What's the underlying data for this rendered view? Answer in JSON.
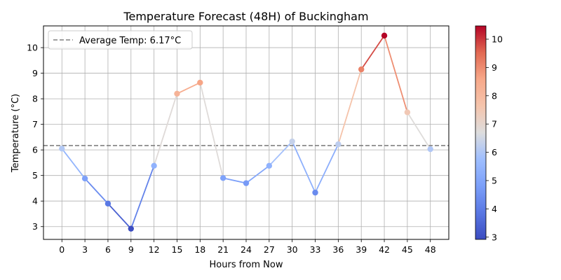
{
  "chart_data": {
    "type": "line",
    "title": "Temperature Forecast (48H) of Buckingham",
    "xlabel": "Hours from Now",
    "ylabel": "Temperature (°C)",
    "x": [
      0,
      3,
      6,
      9,
      12,
      15,
      18,
      21,
      24,
      27,
      30,
      33,
      36,
      39,
      42,
      45,
      48
    ],
    "y": [
      6.05,
      4.88,
      3.9,
      2.92,
      5.38,
      8.2,
      8.63,
      4.9,
      4.7,
      5.38,
      6.33,
      4.33,
      6.22,
      9.15,
      10.47,
      7.47,
      6.03
    ],
    "xlim": [
      -2.4,
      50.4
    ],
    "ylim": [
      2.5,
      10.85
    ],
    "xticks": [
      "0",
      "3",
      "6",
      "9",
      "12",
      "15",
      "18",
      "21",
      "24",
      "27",
      "30",
      "33",
      "36",
      "39",
      "42",
      "45",
      "48"
    ],
    "yticks": [
      "3",
      "4",
      "5",
      "6",
      "7",
      "8",
      "9",
      "10"
    ],
    "average": {
      "value": 6.17,
      "label": "Average Temp: 6.17°C"
    },
    "grid": true,
    "legend_placement": "top-left",
    "colormap": "coolwarm",
    "colorbar": {
      "range": [
        2.92,
        10.47
      ],
      "ticks": [
        "3",
        "4",
        "5",
        "6",
        "7",
        "8",
        "9",
        "10"
      ]
    },
    "colors": {
      "grid": "#b0b0b0",
      "average_line": "#808080",
      "cmap_low": "#3b4cc0",
      "cmap_mid": "#dddddd",
      "cmap_high": "#b40426"
    }
  }
}
